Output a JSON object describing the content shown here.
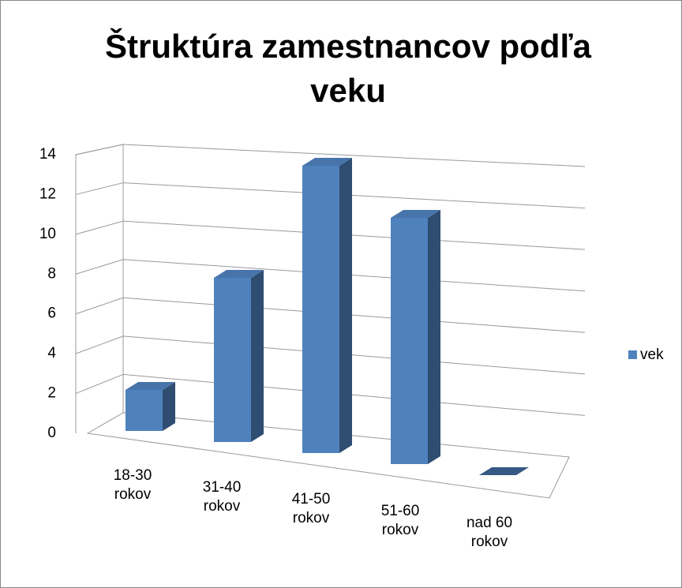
{
  "chart_data": {
    "type": "bar3d",
    "title": "Štruktúra zamestnancov podľa veku",
    "categories": [
      "18-30 rokov",
      "31-40 rokov",
      "41-50 rokov",
      "51-60 rokov",
      "nad 60 rokov"
    ],
    "series": [
      {
        "name": "vek",
        "color": "#4f81bd",
        "values": [
          2,
          8,
          14,
          12,
          0
        ]
      }
    ],
    "ylim": [
      0,
      14
    ],
    "yticks": [
      0,
      2,
      4,
      6,
      8,
      10,
      12,
      14
    ],
    "grid": true,
    "legend": "right"
  }
}
